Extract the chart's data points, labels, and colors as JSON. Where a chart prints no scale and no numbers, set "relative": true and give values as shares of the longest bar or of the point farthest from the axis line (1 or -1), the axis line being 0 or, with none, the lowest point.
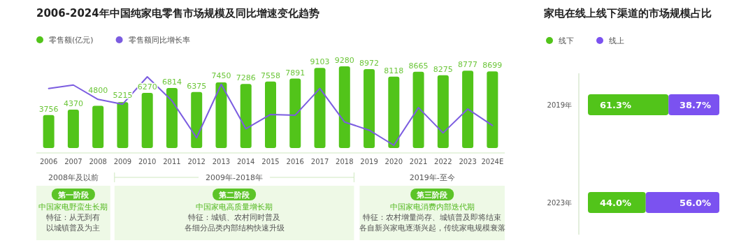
{
  "chart_data": [
    {
      "type": "bar",
      "title": "2006-2024年中国纯家电零售市场规模及同比增速变化趋势",
      "categories": [
        "2006",
        "2007",
        "2008",
        "2009",
        "2010",
        "2011",
        "2012",
        "2013",
        "2014",
        "2015",
        "2016",
        "2017",
        "2018",
        "2019",
        "2020",
        "2021",
        "2022",
        "2023",
        "2024E"
      ],
      "series": [
        {
          "name": "零售额(亿元)",
          "color": "#52c41a",
          "values": [
            3756,
            4370,
            4800,
            5215,
            6270,
            6814,
            6375,
            7450,
            7286,
            7558,
            7891,
            9103,
            9280,
            8972,
            8118,
            8665,
            8275,
            8777,
            8699
          ]
        }
      ],
      "data_labels": true,
      "legend": "top left",
      "annotations": [
        "2008年及以前",
        "2009年-2018年",
        "2019年-至今",
        "第一阶段",
        "中国家电野蛮生长期",
        "特征：从无到有",
        "以城镇普及为主",
        "第二阶段",
        "中国家电高质量增长期",
        "特征：城镇、农村同时普及",
        "各细分品类内部结构快速升级",
        "第三阶段",
        "中国家电消费内部迭代期",
        "特征：农村增量尚存、城镇普及即将结束",
        "各自新兴家电逐渐兴起，传统家电规模衰落"
      ]
    },
    {
      "type": "line",
      "relative": true,
      "tick_labels": false,
      "legend": "top left",
      "categories": [
        "2006",
        "2007",
        "2008",
        "2009",
        "2010",
        "2011",
        "2012",
        "2013",
        "2014",
        "2015",
        "2016",
        "2017",
        "2018",
        "2019",
        "2020",
        "2021",
        "2022",
        "2023",
        "2024E"
      ],
      "series": [
        {
          "name": "零售额同比增长率",
          "color": "#7b5ce0",
          "values": [
            0.83,
            0.88,
            0.67,
            0.6,
            1,
            0.65,
            0.11,
            0.89,
            0.24,
            0.45,
            0.44,
            0.83,
            0.34,
            0.22,
            0,
            0.55,
            0.18,
            0.53,
            0.29
          ]
        }
      ]
    },
    {
      "type": "bar",
      "title": "家电在线上线下渠道的市场规模占比",
      "orientation": "horizontal",
      "stacked": true,
      "categories": [
        "2019年",
        "2023年"
      ],
      "series": [
        {
          "name": "线下",
          "color": "#52c41a",
          "values": [
            61.3,
            44.0
          ],
          "value_labels": [
            "61.3%",
            "44.0%"
          ]
        },
        {
          "name": "线上",
          "color": "#7b52f0",
          "values": [
            38.7,
            56.0
          ],
          "value_labels": [
            "38.7%",
            "56.0%"
          ]
        }
      ],
      "legend": "top left"
    }
  ]
}
